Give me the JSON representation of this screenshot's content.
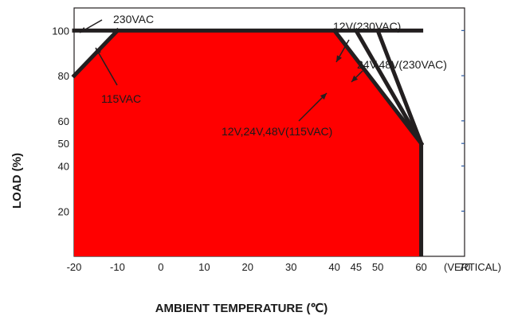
{
  "chart_data": {
    "type": "area",
    "xlabel": "AMBIENT TEMPERATURE (℃)",
    "ylabel": "LOAD (%)",
    "xlim": [
      -20,
      70
    ],
    "ylim": [
      0,
      110
    ],
    "x_ticks": [
      -20,
      -10,
      0,
      10,
      20,
      30,
      40,
      45,
      50,
      60,
      70
    ],
    "x_tick_labels": [
      "-20",
      "-10",
      "0",
      "10",
      "20",
      "30",
      "40",
      "45",
      "50",
      "60",
      "70"
    ],
    "x_axis_note": "(VERTICAL)",
    "y_ticks": [
      20,
      40,
      50,
      60,
      80,
      100
    ],
    "y_tick_labels": [
      "20",
      "40",
      "50",
      "60",
      "80",
      "100"
    ],
    "grid": false,
    "fill_color": "#ff0000",
    "line_color": "#231f20",
    "series": [
      {
        "name": "230VAC",
        "x": [
          -20,
          60
        ],
        "y": [
          100,
          100
        ]
      },
      {
        "name": "115VAC",
        "x": [
          -20,
          -10
        ],
        "y": [
          80,
          100
        ]
      },
      {
        "name": "12V(230VAC)",
        "x": [
          50,
          60
        ],
        "y": [
          100,
          50
        ]
      },
      {
        "name": "24V,48V(230VAC)",
        "x": [
          45,
          60
        ],
        "y": [
          100,
          50
        ]
      },
      {
        "name": "12V,24V,48V(115VAC)",
        "x": [
          40,
          60
        ],
        "y": [
          100,
          50
        ]
      }
    ],
    "filled_region": {
      "x": [
        -20,
        -20,
        -10,
        40,
        60,
        60
      ],
      "y": [
        0,
        80,
        100,
        100,
        50,
        0
      ]
    },
    "annotations": [
      "230VAC",
      "115VAC",
      "12V(230VAC)",
      "24V,48V(230VAC)",
      "12V,24V,48V(115VAC)"
    ]
  }
}
